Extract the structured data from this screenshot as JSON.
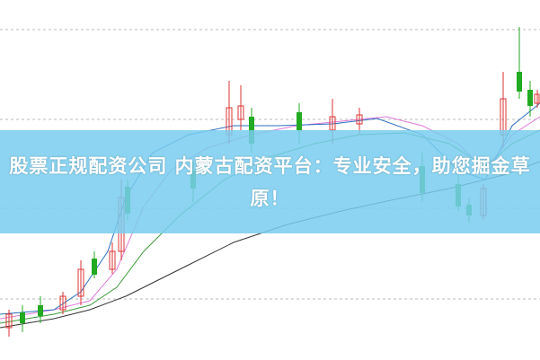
{
  "banner": {
    "title": "股票正规配资公司 内蒙古配资平台：专业安全，助您掘金草原！"
  }
}
